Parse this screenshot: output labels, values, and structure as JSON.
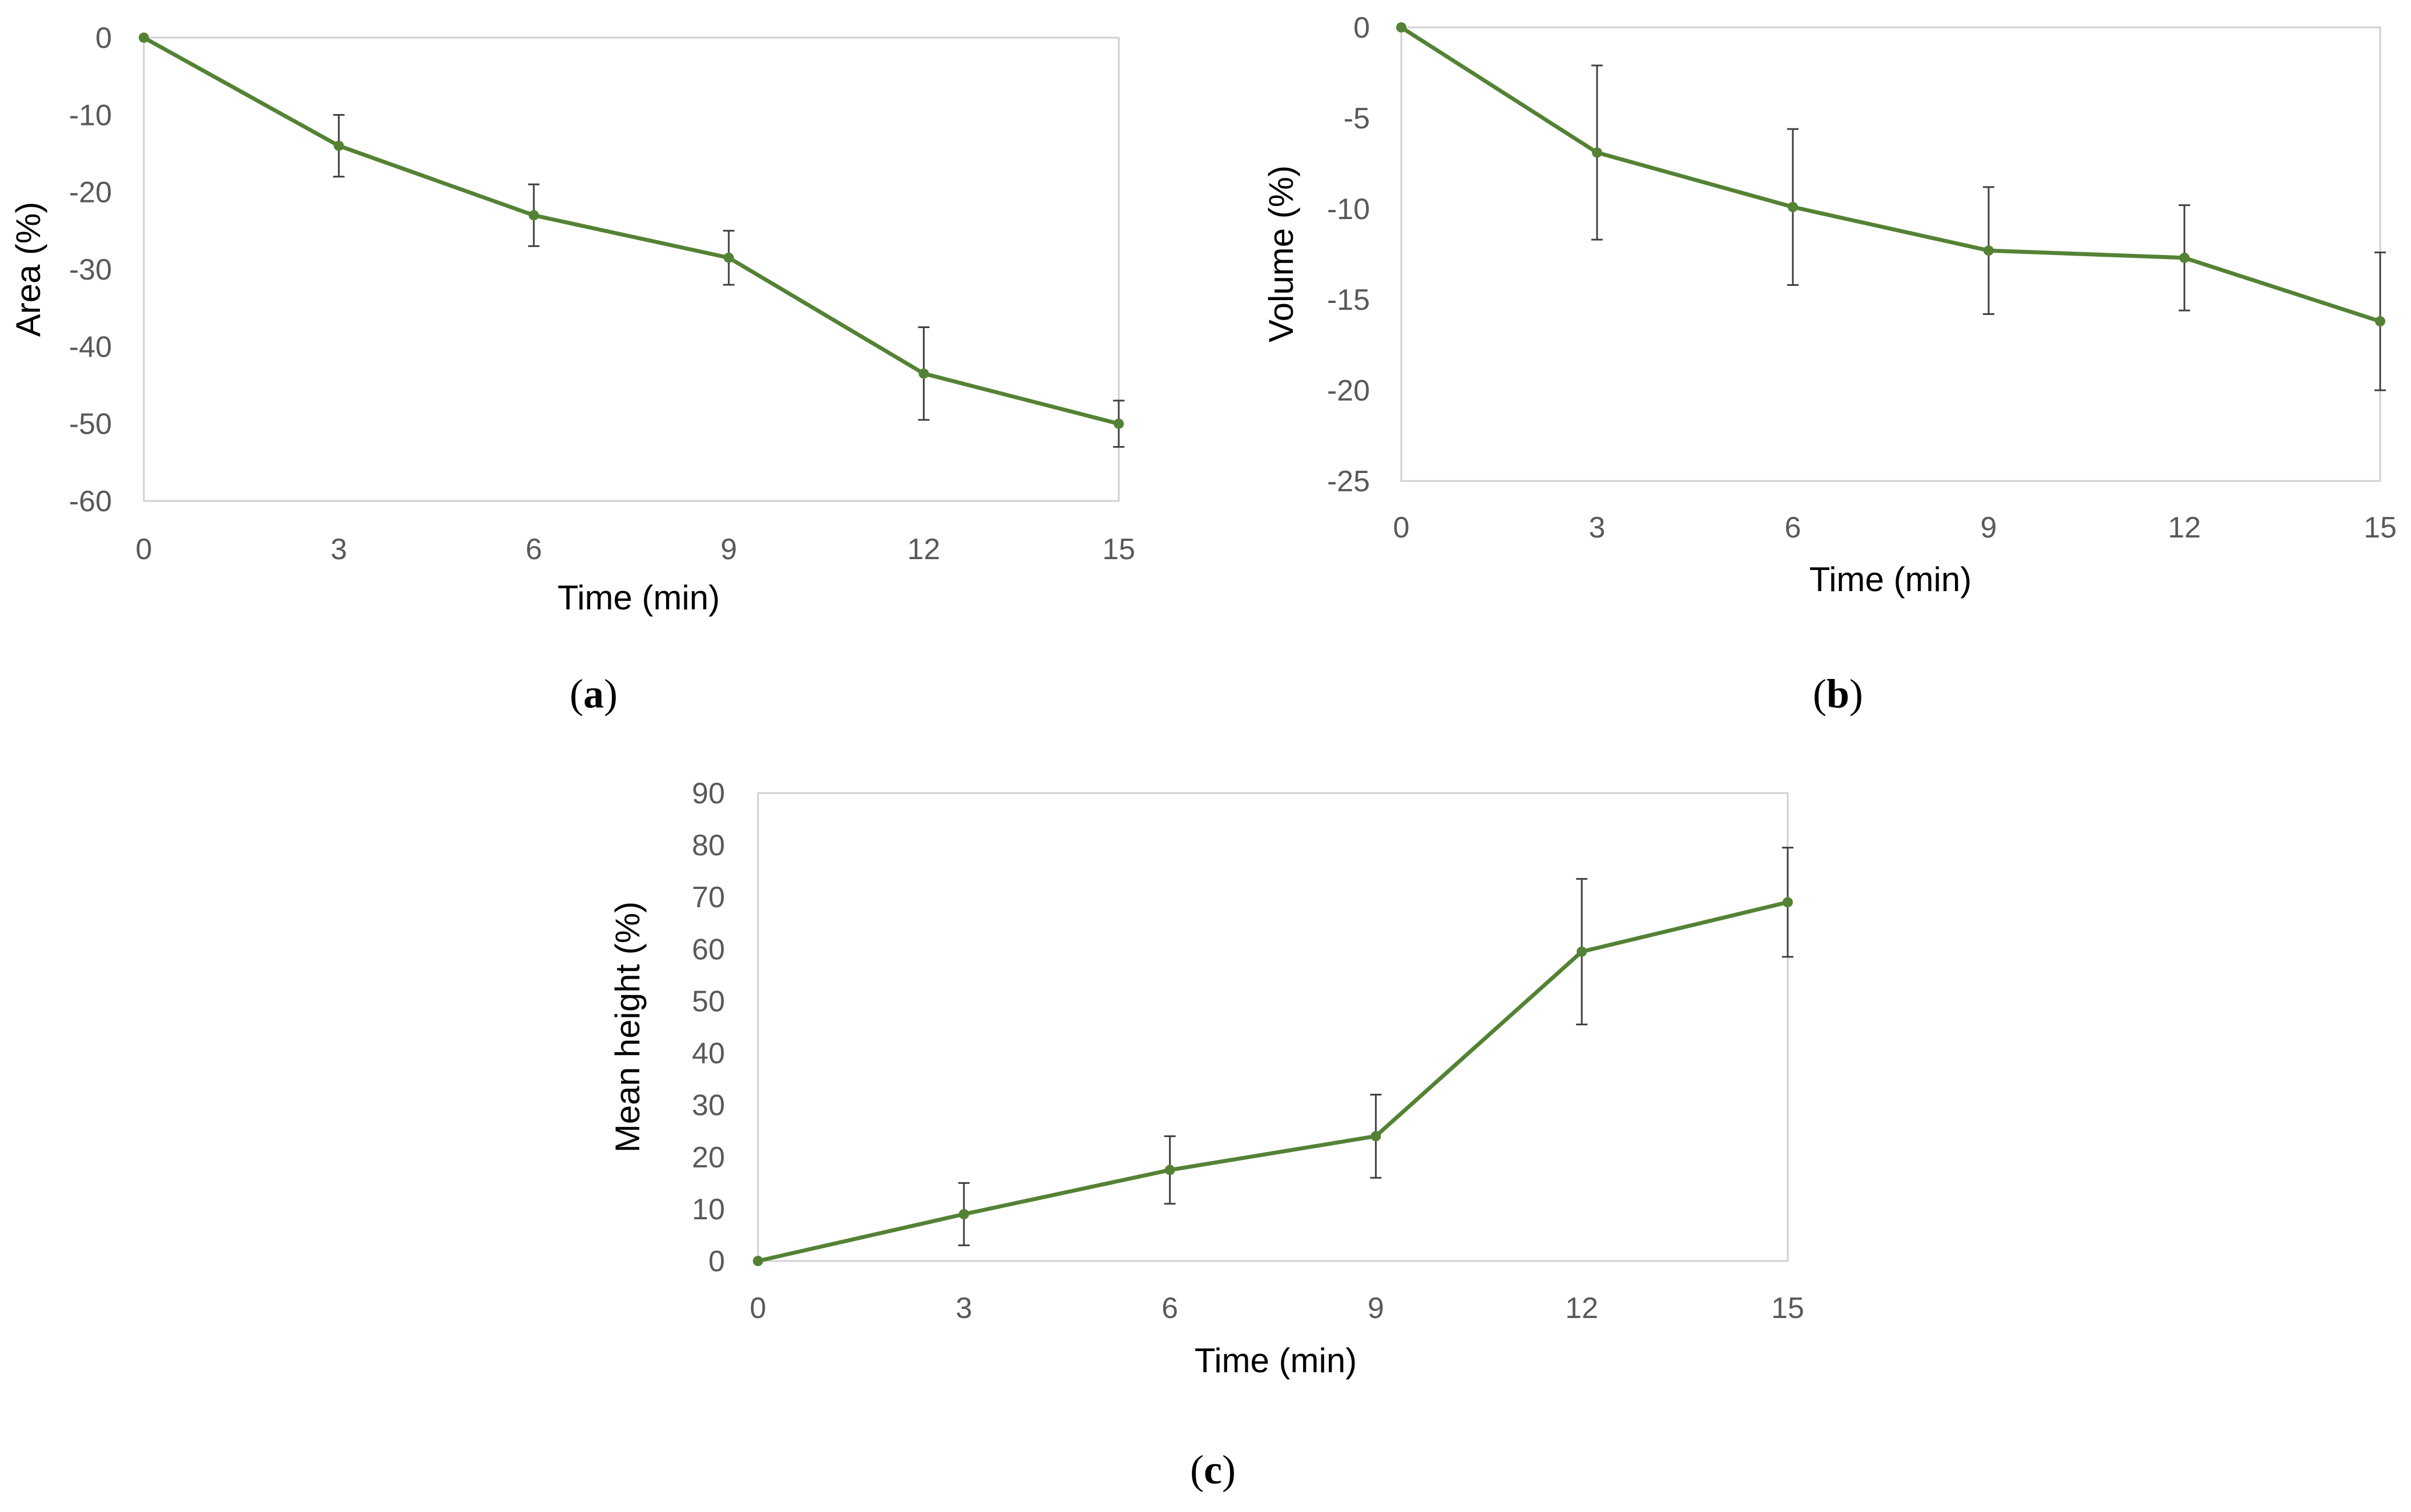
{
  "chart_data": [
    {
      "type": "line",
      "panel": "a",
      "caption_letter": "a",
      "x": [
        0,
        3,
        6,
        9,
        12,
        15
      ],
      "series": [
        {
          "name": "Area",
          "values": [
            0,
            -14,
            -23,
            -28.5,
            -43.5,
            -50
          ],
          "errors": [
            0,
            4,
            4,
            3.5,
            6,
            3
          ],
          "color": "#548235"
        }
      ],
      "xlabel": "Time (min)",
      "ylabel": "Area (%)",
      "xticks": [
        0,
        3,
        6,
        9,
        12,
        15
      ],
      "yticks": [
        0,
        -10,
        -20,
        -30,
        -40,
        -50,
        -60
      ],
      "xlim": [
        0,
        15
      ],
      "ylim": [
        -60,
        0
      ],
      "grid": false
    },
    {
      "type": "line",
      "panel": "b",
      "caption_letter": "b",
      "x": [
        0,
        3,
        6,
        9,
        12,
        15
      ],
      "series": [
        {
          "name": "Volume",
          "values": [
            0,
            -6.9,
            -9.9,
            -12.3,
            -12.7,
            -16.2
          ],
          "errors": [
            0,
            4.8,
            4.3,
            3.5,
            2.9,
            3.8
          ],
          "color": "#548235"
        }
      ],
      "xlabel": "Time (min)",
      "ylabel": "Volume (%)",
      "xticks": [
        0,
        3,
        6,
        9,
        12,
        15
      ],
      "yticks": [
        0,
        -5,
        -10,
        -15,
        -20,
        -25
      ],
      "xlim": [
        0,
        15
      ],
      "ylim": [
        -25,
        0
      ],
      "grid": false
    },
    {
      "type": "line",
      "panel": "c",
      "caption_letter": "c",
      "x": [
        0,
        3,
        6,
        9,
        12,
        15
      ],
      "series": [
        {
          "name": "Mean height",
          "values": [
            0,
            9,
            17.5,
            24,
            59.5,
            69
          ],
          "errors": [
            0,
            6,
            6.5,
            8,
            14,
            10.5
          ],
          "color": "#548235"
        }
      ],
      "xlabel": "Time (min)",
      "ylabel": "Mean height  (%)",
      "xticks": [
        0,
        3,
        6,
        9,
        12,
        15
      ],
      "yticks": [
        0,
        10,
        20,
        30,
        40,
        50,
        60,
        70,
        80,
        90
      ],
      "xlim": [
        0,
        15
      ],
      "ylim": [
        0,
        90
      ],
      "grid": false
    }
  ]
}
